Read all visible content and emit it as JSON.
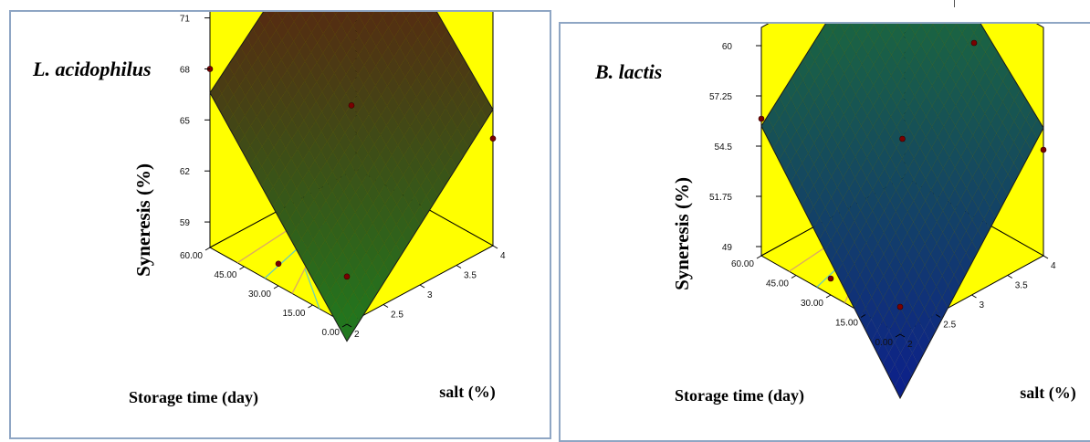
{
  "charts": [
    {
      "title": "L. acidophilus",
      "zlabel": "Syneresis (%)",
      "xlabel": "Storage time (day)",
      "ylabel": "salt (%)",
      "z_ticks": [
        "59",
        "62",
        "65",
        "68",
        "71"
      ],
      "x_ticks": [
        "0.00",
        "15.00",
        "30.00",
        "45.00",
        "60.00"
      ],
      "y_ticks": [
        "2",
        "2.5",
        "3",
        "3.5",
        "4"
      ],
      "surface_colors": {
        "high": "#6b0c0c",
        "low": "#1f7a1f"
      }
    },
    {
      "title": "B. lactis",
      "zlabel": "Syneresis (%)",
      "xlabel": "Storage time (day)",
      "ylabel": "salt (%)",
      "z_ticks": [
        "49",
        "51.75",
        "54.5",
        "57.25",
        "60"
      ],
      "x_ticks": [
        "0.00",
        "15.00",
        "30.00",
        "45.00",
        "60.00"
      ],
      "y_ticks": [
        "2",
        "2.5",
        "3",
        "3.5",
        "4"
      ],
      "surface_colors": {
        "high": "#1f7a2a",
        "low": "#0c1f8c"
      }
    }
  ],
  "chart_data": [
    {
      "type": "surface3d",
      "title": "L. acidophilus",
      "xlabel": "Storage time (day)",
      "ylabel": "salt (%)",
      "zlabel": "Syneresis (%)",
      "x_range": [
        0,
        60
      ],
      "y_range": [
        2,
        4
      ],
      "z_range": [
        57.5,
        72
      ],
      "surface": {
        "x0_y2": 56.5,
        "x0_y4": 65.5,
        "x60_y2": 66.6,
        "x60_y4": 75.0
      },
      "design_points": [
        {
          "x": 60,
          "y": 2,
          "z": 68.0
        },
        {
          "x": 60,
          "y": 4,
          "z": 71.6
        },
        {
          "x": 0,
          "y": 2,
          "z": 60.3
        },
        {
          "x": 0,
          "y": 4,
          "z": 63.8
        },
        {
          "x": 30,
          "y": 3,
          "z": 65.8
        },
        {
          "x": 30,
          "y": 2,
          "z": 58.8
        },
        {
          "x": 30,
          "y": 4,
          "z": 69.2
        }
      ],
      "colors": {
        "wall": "#ffff00",
        "high": "#6b0c0c",
        "low": "#1f7a1f"
      },
      "contours": true
    },
    {
      "type": "surface3d",
      "title": "B. lactis",
      "xlabel": "Storage time (day)",
      "ylabel": "salt (%)",
      "zlabel": "Syneresis (%)",
      "x_range": [
        0,
        60
      ],
      "y_range": [
        2,
        4
      ],
      "z_range": [
        48.5,
        61
      ],
      "surface": {
        "x0_y2": 45.0,
        "x0_y4": 55.5,
        "x60_y2": 55.6,
        "x60_y4": 63.8
      },
      "design_points": [
        {
          "x": 60,
          "y": 2,
          "z": 56.0
        },
        {
          "x": 60,
          "y": 4,
          "z": 61.0
        },
        {
          "x": 0,
          "y": 2,
          "z": 50.0
        },
        {
          "x": 0,
          "y": 4,
          "z": 54.3
        },
        {
          "x": 30,
          "y": 3,
          "z": 54.9
        },
        {
          "x": 30,
          "y": 2,
          "z": 49.4
        },
        {
          "x": 30,
          "y": 4,
          "z": 58.0
        }
      ],
      "colors": {
        "wall": "#ffff00",
        "high": "#1f7a2a",
        "low": "#0c1f8c"
      },
      "contours": true
    }
  ]
}
